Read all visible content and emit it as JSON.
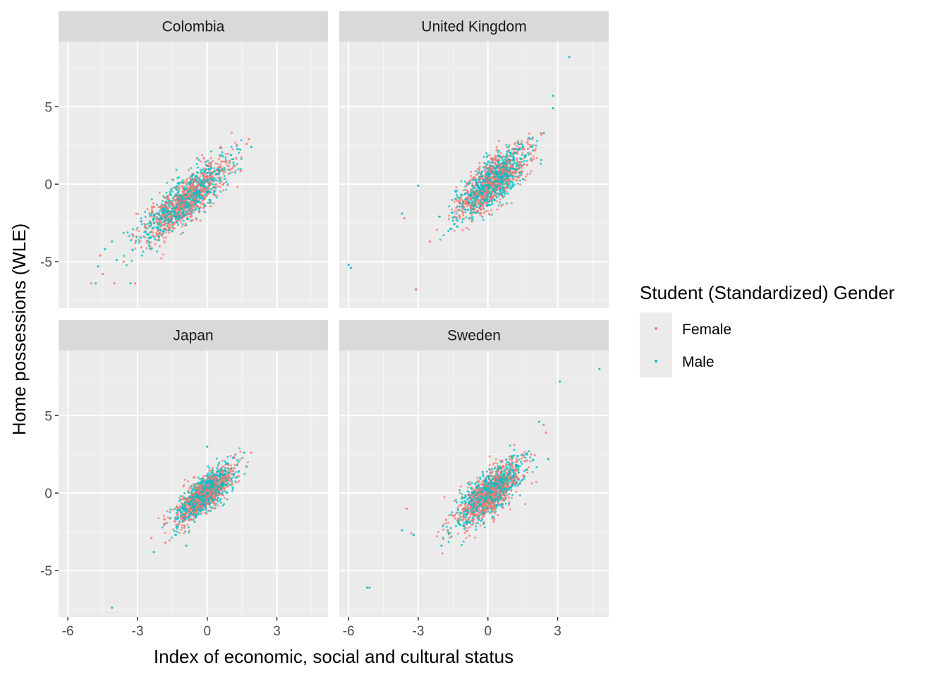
{
  "chart_data": {
    "type": "scatter",
    "facet_layout": "2x2",
    "xlabel": "Index of economic, social and cultural status",
    "ylabel": "Home possessions (WLE)",
    "xlim": [
      -6.4,
      5.2
    ],
    "ylim": [
      -8.0,
      9.2
    ],
    "x_ticks": [
      -6,
      -3,
      0,
      3
    ],
    "y_ticks": [
      -5,
      0,
      5
    ],
    "x_tick_labels": [
      "-6",
      "-3",
      "0",
      "3"
    ],
    "y_tick_labels": [
      "-5",
      "0",
      "5"
    ],
    "grid": true,
    "legend": {
      "title": "Student (Standardized) Gender",
      "placement": "right",
      "entries": [
        {
          "name": "Female",
          "color": "#F8766D"
        },
        {
          "name": "Male",
          "color": "#00BFC4"
        }
      ]
    },
    "panels": [
      {
        "name": "Colombia",
        "cloud": {
          "x_mean": -0.9,
          "x_sd": 0.95,
          "x_min": -3.6,
          "x_max": 1.8,
          "slope": 1.15,
          "intercept": 0.05,
          "resid_sd": 0.75,
          "n": 1500
        },
        "extremes": [
          {
            "x": -5.0,
            "y": -6.4,
            "g": "Female"
          },
          {
            "x": -4.8,
            "y": -6.4,
            "g": "Male"
          },
          {
            "x": -4.0,
            "y": -6.4,
            "g": "Female"
          },
          {
            "x": -3.1,
            "y": -6.4,
            "g": "Female"
          },
          {
            "x": -3.3,
            "y": -6.4,
            "g": "Male"
          },
          {
            "x": -4.7,
            "y": -5.3,
            "g": "Male"
          },
          {
            "x": -4.6,
            "y": -4.6,
            "g": "Female"
          },
          {
            "x": -4.4,
            "y": -4.2,
            "g": "Male"
          },
          {
            "x": -4.1,
            "y": -3.7,
            "g": "Male"
          },
          {
            "x": -4.5,
            "y": -5.8,
            "g": "Female"
          },
          {
            "x": -3.9,
            "y": -4.9,
            "g": "Male"
          },
          {
            "x": -3.6,
            "y": -5.0,
            "g": "Female"
          },
          {
            "x": 1.8,
            "y": 2.9,
            "g": "Female"
          },
          {
            "x": 1.9,
            "y": 2.4,
            "g": "Male"
          },
          {
            "x": 1.7,
            "y": 2.6,
            "g": "Female"
          }
        ]
      },
      {
        "name": "United Kingdom",
        "cloud": {
          "x_mean": 0.2,
          "x_sd": 0.75,
          "x_min": -2.6,
          "x_max": 2.3,
          "slope": 1.1,
          "intercept": -0.05,
          "resid_sd": 0.75,
          "n": 1500
        },
        "extremes": [
          {
            "x": 3.5,
            "y": 8.2,
            "g": "Male"
          },
          {
            "x": 2.8,
            "y": 5.7,
            "g": "Male"
          },
          {
            "x": 2.8,
            "y": 4.9,
            "g": "Male"
          },
          {
            "x": -6.0,
            "y": -5.2,
            "g": "Male"
          },
          {
            "x": -5.9,
            "y": -5.4,
            "g": "Male"
          },
          {
            "x": -3.1,
            "y": -6.8,
            "g": "Male"
          },
          {
            "x": -3.1,
            "y": -6.8,
            "g": "Female"
          },
          {
            "x": -3.6,
            "y": -2.2,
            "g": "Female"
          },
          {
            "x": -3.7,
            "y": -1.9,
            "g": "Male"
          },
          {
            "x": -2.5,
            "y": -3.7,
            "g": "Female"
          },
          {
            "x": -3.0,
            "y": -0.1,
            "g": "Male"
          },
          {
            "x": 2.3,
            "y": 3.2,
            "g": "Female"
          },
          {
            "x": 2.4,
            "y": 3.3,
            "g": "Male"
          }
        ]
      },
      {
        "name": "Japan",
        "cloud": {
          "x_mean": -0.1,
          "x_sd": 0.6,
          "x_min": -2.2,
          "x_max": 1.9,
          "slope": 1.15,
          "intercept": 0.05,
          "resid_sd": 0.55,
          "n": 1500
        },
        "extremes": [
          {
            "x": -4.1,
            "y": -7.4,
            "g": "Male"
          },
          {
            "x": -2.3,
            "y": -3.8,
            "g": "Male"
          },
          {
            "x": -2.4,
            "y": -2.9,
            "g": "Female"
          },
          {
            "x": 0.0,
            "y": 3.0,
            "g": "Male"
          },
          {
            "x": 1.9,
            "y": 2.6,
            "g": "Female"
          },
          {
            "x": 1.6,
            "y": 2.6,
            "g": "Male"
          },
          {
            "x": -0.9,
            "y": -3.4,
            "g": "Male"
          },
          {
            "x": -1.8,
            "y": -3.2,
            "g": "Female"
          }
        ]
      },
      {
        "name": "Sweden",
        "cloud": {
          "x_mean": 0.1,
          "x_sd": 0.7,
          "x_min": -2.6,
          "x_max": 2.4,
          "slope": 1.1,
          "intercept": -0.1,
          "resid_sd": 0.7,
          "n": 1500
        },
        "extremes": [
          {
            "x": 4.8,
            "y": 8.0,
            "g": "Male"
          },
          {
            "x": 3.1,
            "y": 7.2,
            "g": "Male"
          },
          {
            "x": -5.2,
            "y": -6.1,
            "g": "Male"
          },
          {
            "x": -5.1,
            "y": -6.1,
            "g": "Male"
          },
          {
            "x": -3.7,
            "y": -2.4,
            "g": "Male"
          },
          {
            "x": -3.3,
            "y": -2.6,
            "g": "Female"
          },
          {
            "x": -3.2,
            "y": -2.7,
            "g": "Male"
          },
          {
            "x": -3.5,
            "y": -1.0,
            "g": "Female"
          },
          {
            "x": -2.0,
            "y": -3.4,
            "g": "Male"
          },
          {
            "x": 2.2,
            "y": 4.6,
            "g": "Male"
          },
          {
            "x": 2.5,
            "y": 3.9,
            "g": "Female"
          },
          {
            "x": 2.6,
            "y": 2.2,
            "g": "Male"
          },
          {
            "x": 2.4,
            "y": 4.4,
            "g": "Female"
          }
        ]
      }
    ]
  }
}
